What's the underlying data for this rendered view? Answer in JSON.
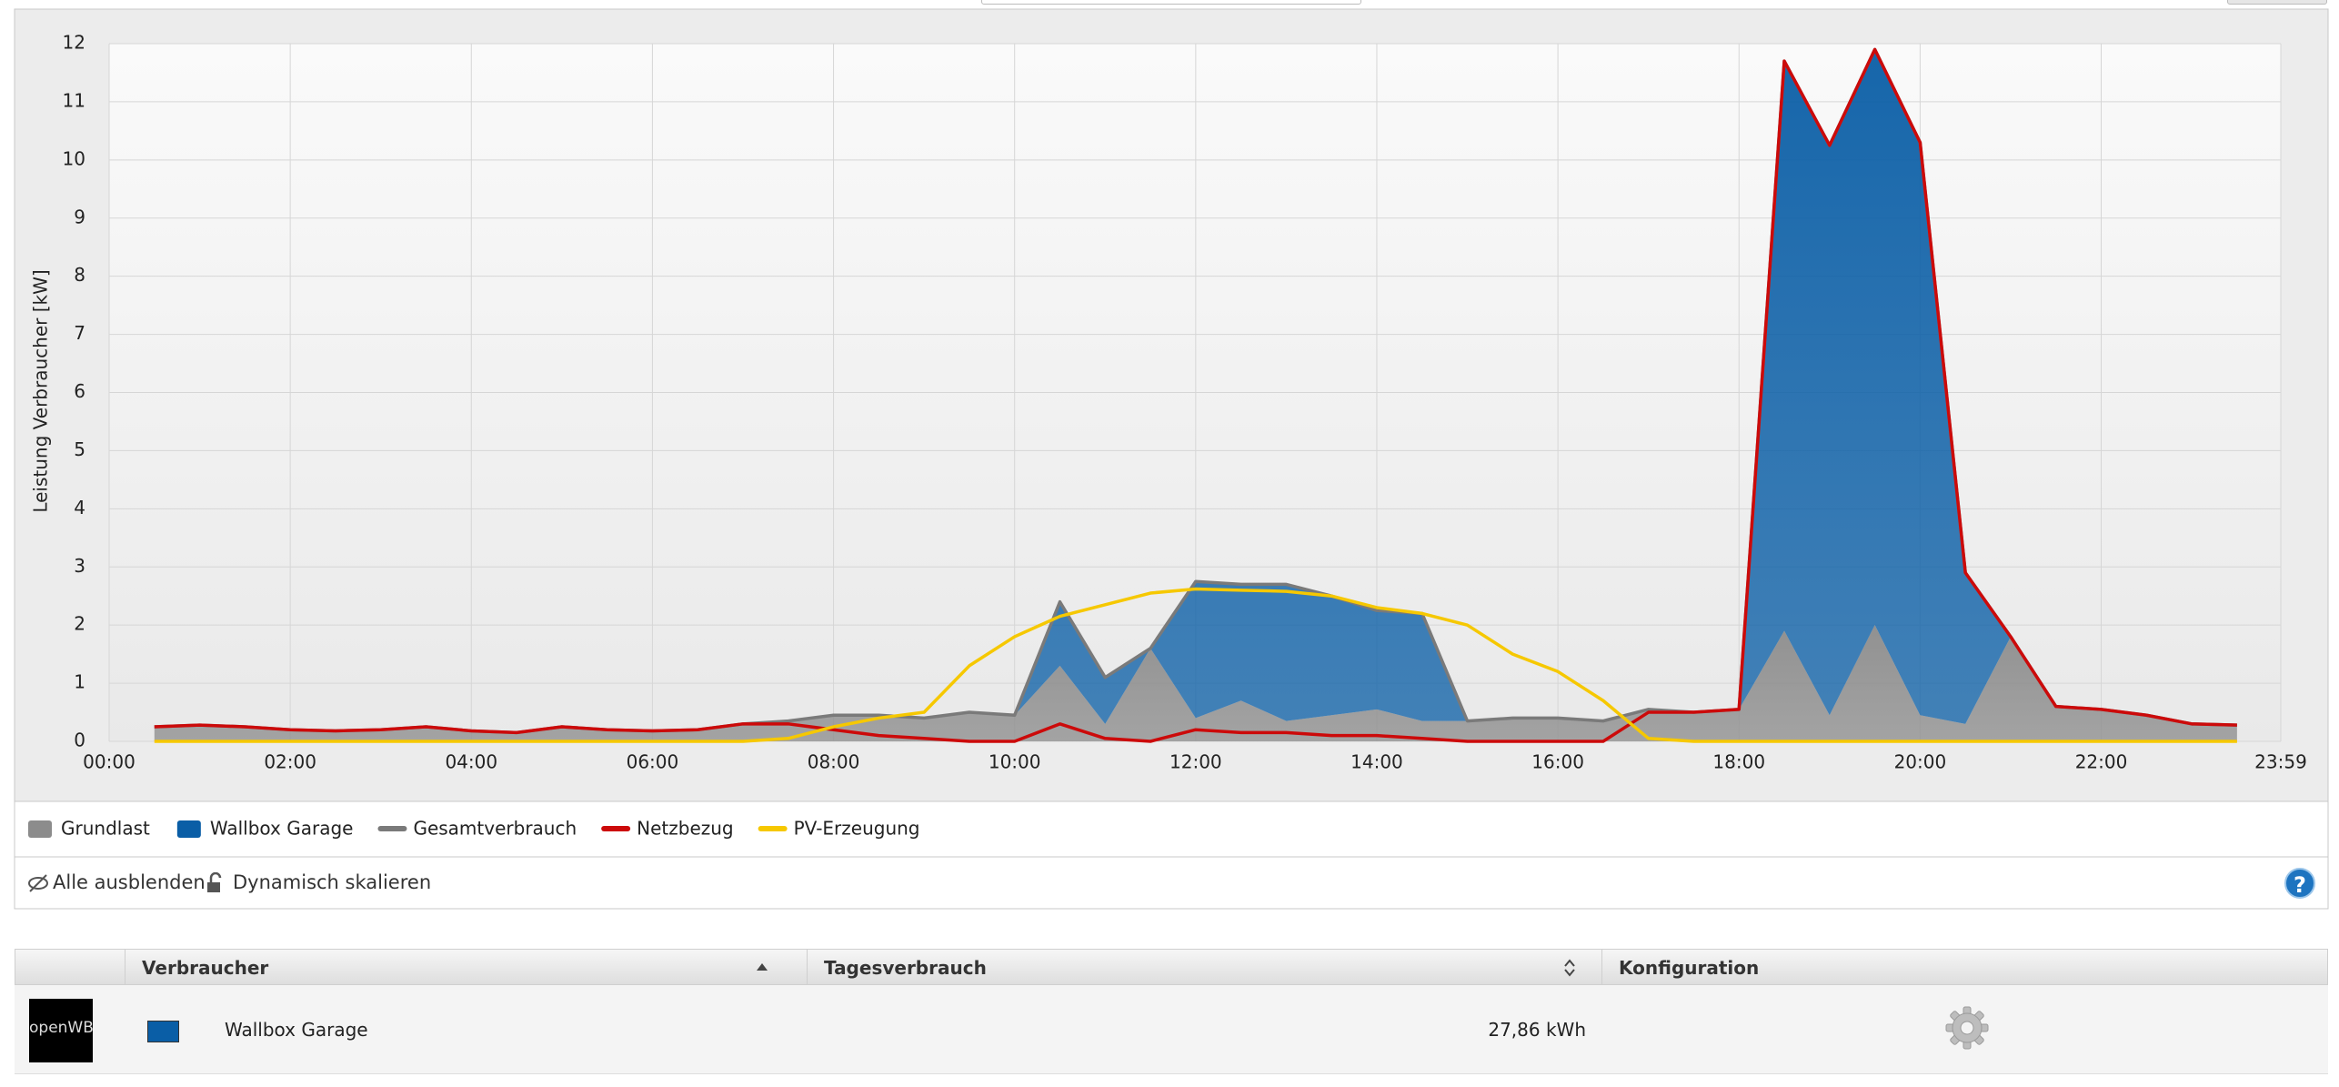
{
  "chart_data": {
    "type": "area",
    "y_label": "Leistung Verbraucher [kW]",
    "x": [
      "00:30",
      "01:00",
      "01:30",
      "02:00",
      "02:30",
      "03:00",
      "03:30",
      "04:00",
      "04:30",
      "05:00",
      "05:30",
      "06:00",
      "06:30",
      "07:00",
      "07:30",
      "08:00",
      "08:30",
      "09:00",
      "09:30",
      "10:00",
      "10:30",
      "11:00",
      "11:30",
      "12:00",
      "12:30",
      "13:00",
      "13:30",
      "14:00",
      "14:30",
      "15:00",
      "15:30",
      "16:00",
      "16:30",
      "17:00",
      "17:30",
      "18:00",
      "18:30",
      "19:00",
      "19:30",
      "20:00",
      "20:30",
      "21:00",
      "21:30",
      "22:00",
      "22:30",
      "23:00",
      "23:30"
    ],
    "series": [
      {
        "name": "Grundlast",
        "kind": "area",
        "color": "#8c8c8c",
        "values": [
          0.25,
          0.28,
          0.25,
          0.2,
          0.18,
          0.2,
          0.25,
          0.18,
          0.15,
          0.25,
          0.2,
          0.18,
          0.2,
          0.3,
          0.35,
          0.45,
          0.45,
          0.4,
          0.5,
          0.45,
          1.3,
          0.3,
          1.6,
          0.4,
          0.7,
          0.35,
          0.45,
          0.55,
          0.35,
          0.35,
          0.4,
          0.4,
          0.35,
          0.55,
          0.5,
          0.55,
          1.9,
          0.45,
          2.0,
          0.45,
          0.3,
          1.8,
          0.6,
          0.55,
          0.45,
          0.3,
          0.28
        ]
      },
      {
        "name": "Wallbox Garage",
        "kind": "area",
        "stack": true,
        "color": "#0a5ea6",
        "values": [
          0,
          0,
          0,
          0,
          0,
          0,
          0,
          0,
          0,
          0,
          0,
          0,
          0,
          0,
          0,
          0,
          0,
          0,
          0,
          0,
          1.1,
          0.8,
          0,
          2.35,
          2.0,
          2.35,
          2.05,
          1.7,
          1.85,
          0,
          0,
          0,
          0,
          0,
          0,
          0,
          9.8,
          9.8,
          9.9,
          9.85,
          2.6,
          0,
          0,
          0,
          0,
          0,
          0
        ]
      },
      {
        "name": "Gesamtverbrauch",
        "kind": "line",
        "color": "#7a7a7a",
        "values": [
          0.25,
          0.28,
          0.25,
          0.2,
          0.18,
          0.2,
          0.25,
          0.18,
          0.15,
          0.25,
          0.2,
          0.18,
          0.2,
          0.3,
          0.35,
          0.45,
          0.45,
          0.4,
          0.5,
          0.45,
          2.4,
          1.1,
          1.6,
          2.75,
          2.7,
          2.7,
          2.5,
          2.25,
          2.2,
          0.35,
          0.4,
          0.4,
          0.35,
          0.55,
          0.5,
          0.55,
          11.7,
          10.25,
          11.9,
          10.3,
          2.9,
          1.8,
          0.6,
          0.55,
          0.45,
          0.3,
          0.28
        ]
      },
      {
        "name": "Netzbezug",
        "kind": "line",
        "color": "#cc0a0a",
        "values": [
          0.25,
          0.28,
          0.25,
          0.2,
          0.18,
          0.2,
          0.25,
          0.18,
          0.15,
          0.25,
          0.2,
          0.18,
          0.2,
          0.3,
          0.3,
          0.2,
          0.1,
          0.05,
          0,
          0,
          0.3,
          0.05,
          0,
          0.2,
          0.15,
          0.15,
          0.1,
          0.1,
          0.05,
          0,
          0,
          0,
          0,
          0.5,
          0.5,
          0.55,
          11.7,
          10.25,
          11.9,
          10.3,
          2.9,
          1.8,
          0.6,
          0.55,
          0.45,
          0.3,
          0.28
        ]
      },
      {
        "name": "PV-Erzeugung",
        "kind": "line",
        "color": "#f6c800",
        "values": [
          0,
          0,
          0,
          0,
          0,
          0,
          0,
          0,
          0,
          0,
          0,
          0,
          0,
          0,
          0.05,
          0.25,
          0.4,
          0.5,
          1.3,
          1.8,
          2.15,
          2.35,
          2.55,
          2.62,
          2.6,
          2.58,
          2.5,
          2.3,
          2.2,
          2.0,
          1.5,
          1.2,
          0.7,
          0.05,
          0,
          0,
          0,
          0,
          0,
          0,
          0,
          0,
          0,
          0,
          0,
          0,
          0
        ]
      }
    ],
    "xlim": [
      "00:00",
      "23:59"
    ],
    "xticks": [
      "00:00",
      "02:00",
      "04:00",
      "06:00",
      "08:00",
      "10:00",
      "12:00",
      "14:00",
      "16:00",
      "18:00",
      "20:00",
      "22:00",
      "23:59"
    ],
    "ylim": [
      0,
      12
    ],
    "yticks": [
      0,
      1,
      2,
      3,
      4,
      5,
      6,
      7,
      8,
      9,
      10,
      11,
      12
    ],
    "grid": true
  },
  "options": {
    "hide_all": "Alle ausblenden",
    "dynamic_scale": "Dynamisch skalieren",
    "help": "?"
  },
  "table": {
    "headers": [
      "Verbraucher",
      "Tagesverbrauch",
      "Konfiguration"
    ],
    "rows": [
      {
        "logo": "openWB",
        "color": "#0a5ea6",
        "name": "Wallbox Garage",
        "consumption": "27,86 kWh"
      }
    ]
  }
}
